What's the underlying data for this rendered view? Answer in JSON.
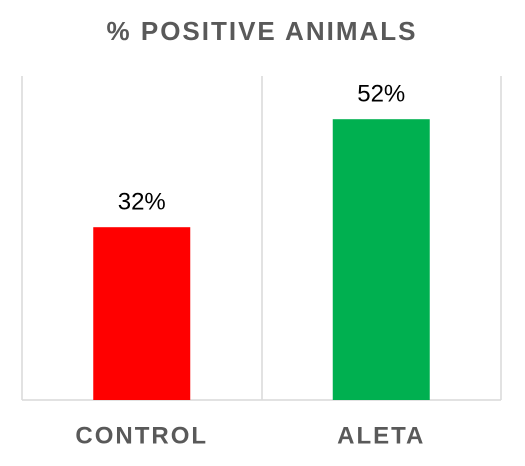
{
  "chart_data": {
    "type": "bar",
    "title": "% POSITIVE ANIMALS",
    "categories": [
      "CONTROL",
      "ALETA"
    ],
    "values": [
      32,
      52
    ],
    "value_labels": [
      "32%",
      "52%"
    ],
    "colors": [
      "#ff0000",
      "#00b050"
    ],
    "ylim": [
      0,
      60
    ]
  }
}
